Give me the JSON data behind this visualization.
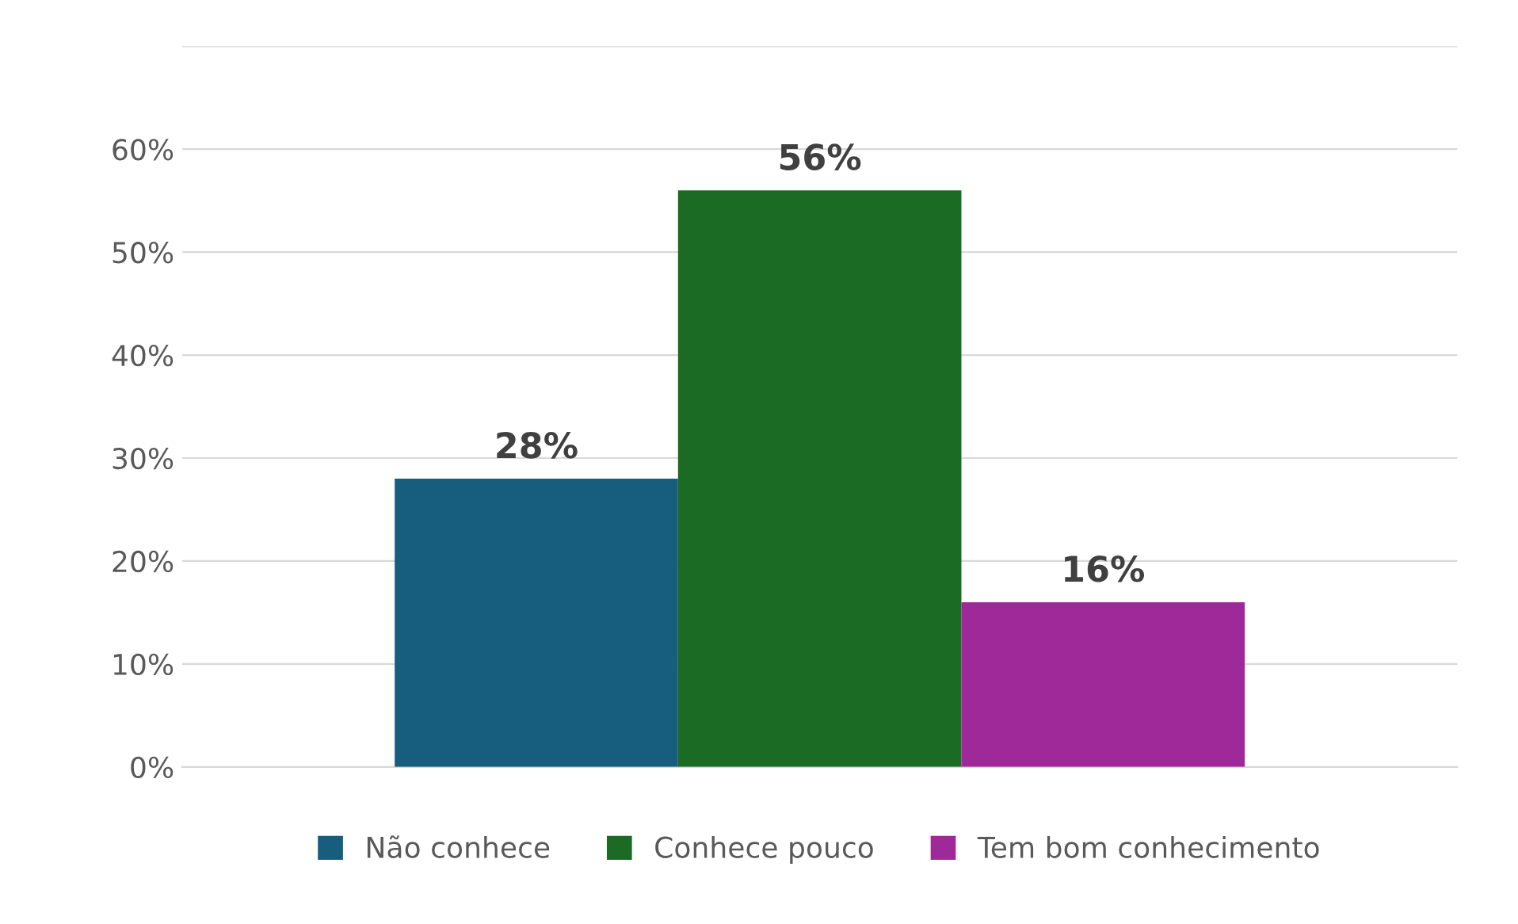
{
  "chart_data": {
    "type": "bar",
    "categories": [
      null
    ],
    "series": [
      {
        "name": "Não conhece",
        "color": "#175e7e",
        "values": [
          28
        ],
        "value_labels": [
          "28%"
        ]
      },
      {
        "name": "Conhece pouco",
        "color": "#1b6b24",
        "values": [
          56
        ],
        "value_labels": [
          "56%"
        ]
      },
      {
        "name": "Tem bom conhecimento",
        "color": "#a0299a",
        "values": [
          16
        ],
        "value_labels": [
          "16%"
        ]
      }
    ],
    "ylim": [
      0,
      70
    ],
    "yticks": [
      {
        "value": 0,
        "label": "0%"
      },
      {
        "value": 10,
        "label": "10%"
      },
      {
        "value": 20,
        "label": "20%"
      },
      {
        "value": 30,
        "label": "30%"
      },
      {
        "value": 40,
        "label": "40%"
      },
      {
        "value": 50,
        "label": "50%"
      },
      {
        "value": 60,
        "label": "60%"
      },
      {
        "value": 70,
        "label": null
      }
    ],
    "grid": "y",
    "legend": "bottom"
  }
}
